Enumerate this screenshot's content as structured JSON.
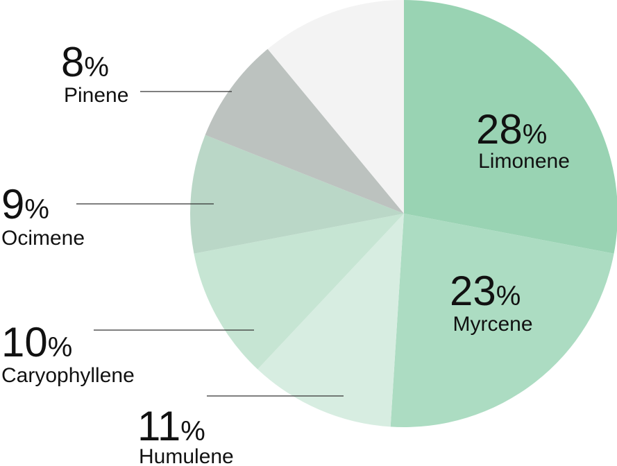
{
  "chart_data": {
    "type": "pie",
    "title": "",
    "unit": "%",
    "slices": [
      {
        "label": "Limonene",
        "value": 28,
        "color": "#99d3b3"
      },
      {
        "label": "Myrcene",
        "value": 23,
        "color": "#acdcc2"
      },
      {
        "label": "Humulene",
        "value": 11,
        "color": "#d7ede1"
      },
      {
        "label": "Caryophyllene",
        "value": 10,
        "color": "#c6e5d3"
      },
      {
        "label": "Ocimene",
        "value": 9,
        "color": "#bad7c7"
      },
      {
        "label": "Pinene",
        "value": 8,
        "color": "#bcc2bf"
      },
      {
        "label": "",
        "value": 11,
        "color": "#f3f3f3"
      }
    ]
  }
}
